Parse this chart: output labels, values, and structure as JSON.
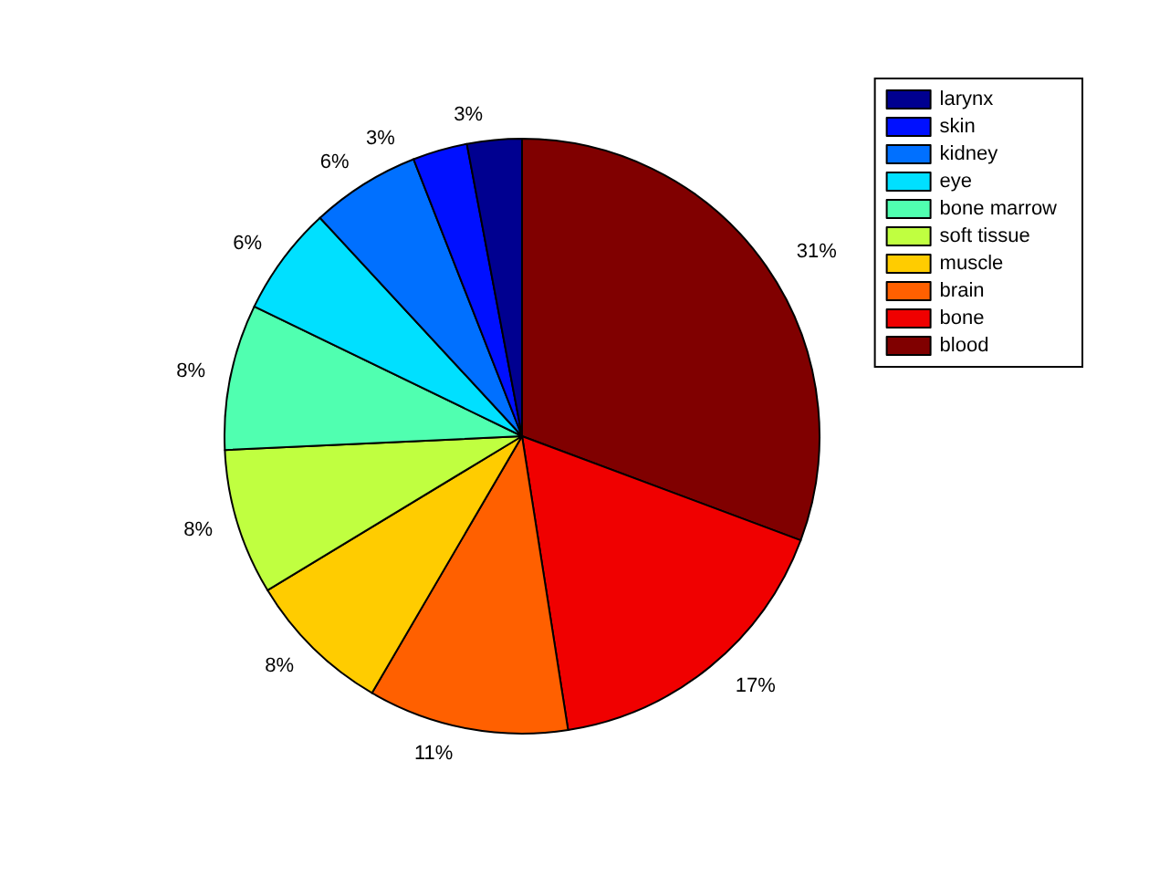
{
  "chart_data": {
    "type": "pie",
    "categories": [
      "blood",
      "bone",
      "brain",
      "muscle",
      "soft tissue",
      "bone marrow",
      "eye",
      "kidney",
      "skin",
      "larynx"
    ],
    "values": [
      31,
      17,
      11,
      8,
      8,
      8,
      6,
      6,
      3,
      3
    ],
    "colors": [
      "#800000",
      "#f00000",
      "#ff6000",
      "#ffcc00",
      "#c0ff40",
      "#50ffb0",
      "#00e0ff",
      "#0070ff",
      "#0010ff",
      "#000090"
    ],
    "value_labels": [
      "31%",
      "17%",
      "11%",
      "8%",
      "8%",
      "8%",
      "6%",
      "6%",
      "3%",
      "3%"
    ],
    "legend": "top right"
  }
}
